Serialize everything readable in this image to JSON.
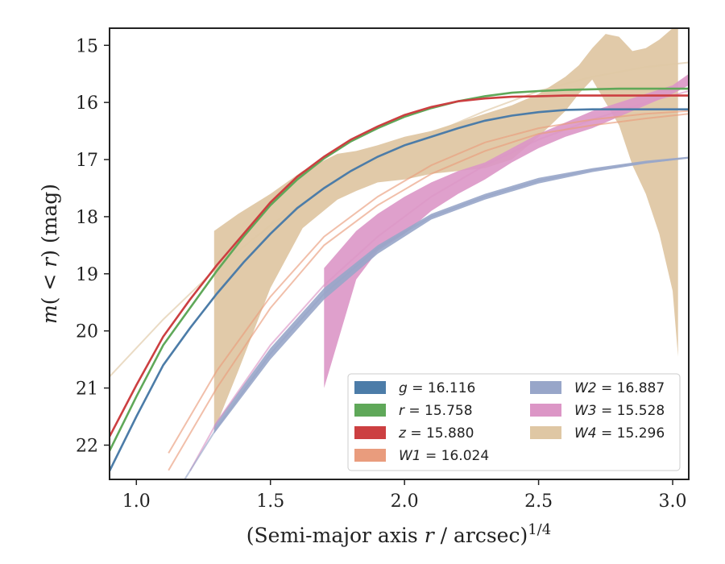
{
  "chart_data": {
    "type": "area",
    "xlabel": "(Semi-major axis r / arcsec)",
    "xlabel_main": "(Semi-major axis ",
    "xlabel_var": "r",
    "xlabel_rest": " / arcsec)",
    "xlabel_exp": "1/4",
    "ylabel": "m(< r) (mag)",
    "ylabel_m": "m",
    "ylabel_lt": "( < ",
    "ylabel_r": "r",
    "ylabel_rest": ") (mag)",
    "xlim": [
      0.9,
      3.06
    ],
    "ylim": [
      22.6,
      14.7
    ],
    "y_inverted": true,
    "x_ticks": [
      1.0,
      1.5,
      2.0,
      2.5,
      3.0
    ],
    "x_tick_labels": [
      "1.0",
      "1.5",
      "2.0",
      "2.5",
      "3.0"
    ],
    "y_ticks": [
      15,
      16,
      17,
      18,
      19,
      20,
      21,
      22
    ],
    "y_tick_labels": [
      "15",
      "16",
      "17",
      "18",
      "19",
      "20",
      "21",
      "22"
    ],
    "grid": false,
    "legend": {
      "placement": "lower-right",
      "columns": 2,
      "entries": [
        {
          "var": "g",
          "value": "16.116",
          "color": "#4c7ca8"
        },
        {
          "var": "r",
          "value": "15.758",
          "color": "#5fa859"
        },
        {
          "var": "z",
          "value": "15.880",
          "color": "#cc3f41"
        },
        {
          "var": "W1",
          "value": "16.024",
          "color": "#e99c7d"
        },
        {
          "var": "W2",
          "value": "16.887",
          "color": "#98a6c9"
        },
        {
          "var": "W3",
          "value": "15.528",
          "color": "#dc96c6"
        },
        {
          "var": "W4",
          "value": "15.296",
          "color": "#dfc7a4"
        }
      ]
    },
    "series": [
      {
        "name": "W4",
        "color": "#dfc7a4",
        "band_x": [
          1.29,
          1.38,
          1.5,
          1.62,
          1.75,
          1.82,
          1.9,
          2.0,
          2.1,
          2.2,
          2.3,
          2.4,
          2.5,
          2.6,
          2.65,
          2.7,
          2.75,
          2.8,
          2.85,
          2.9,
          2.95,
          3.0,
          3.02
        ],
        "band_upper": [
          18.25,
          17.95,
          17.6,
          17.2,
          16.9,
          16.85,
          16.75,
          16.6,
          16.5,
          16.35,
          16.2,
          16.05,
          15.85,
          15.55,
          15.35,
          15.05,
          14.8,
          14.85,
          15.1,
          15.05,
          14.9,
          14.7,
          14.6
        ],
        "band_lower": [
          21.75,
          20.7,
          19.25,
          18.2,
          17.7,
          17.55,
          17.4,
          17.35,
          17.25,
          17.2,
          17.15,
          17.0,
          16.6,
          16.15,
          15.85,
          15.6,
          16.0,
          16.4,
          17.1,
          17.6,
          18.3,
          19.3,
          20.45
        ],
        "line_x": [
          0.9,
          1.1,
          1.3,
          1.5,
          1.7,
          1.9,
          2.1,
          2.3,
          2.5,
          2.7,
          2.9,
          3.06
        ],
        "line_y": [
          20.8,
          19.8,
          18.9,
          18.15,
          17.5,
          17.0,
          16.55,
          16.15,
          15.8,
          15.55,
          15.38,
          15.3
        ],
        "line_x_start": 0.9
      },
      {
        "name": "W3",
        "color": "#dc96c6",
        "band_x": [
          1.7,
          1.82,
          1.9,
          2.0,
          2.1,
          2.2,
          2.3,
          2.4,
          2.5,
          2.6,
          2.7,
          2.8,
          2.9,
          3.0,
          3.06
        ],
        "band_upper": [
          18.9,
          18.25,
          17.95,
          17.65,
          17.4,
          17.2,
          17.05,
          16.8,
          16.55,
          16.35,
          16.15,
          16.0,
          15.85,
          15.7,
          15.5
        ],
        "band_lower": [
          21.0,
          19.1,
          18.6,
          18.3,
          17.9,
          17.6,
          17.35,
          17.05,
          16.8,
          16.6,
          16.45,
          16.25,
          16.05,
          15.85,
          15.7
        ],
        "line_x": [
          0.9,
          1.1,
          1.3,
          1.5,
          1.7,
          1.9,
          2.1,
          2.3,
          2.5,
          2.7,
          2.9,
          3.06
        ],
        "line_y": [
          25.5,
          23.3,
          21.6,
          20.25,
          19.2,
          18.35,
          17.65,
          17.1,
          16.65,
          16.3,
          16.0,
          15.8
        ],
        "line_x_start": 1.2
      },
      {
        "name": "W2",
        "color": "#98a6c9",
        "band_x": [
          1.29,
          1.5,
          1.7,
          1.9,
          2.1,
          2.3,
          2.5,
          2.7,
          2.9,
          3.06
        ],
        "band_upper": [
          21.65,
          20.3,
          19.25,
          18.5,
          17.95,
          17.6,
          17.32,
          17.15,
          17.02,
          16.95
        ],
        "band_lower": [
          21.8,
          20.5,
          19.45,
          18.65,
          18.05,
          17.7,
          17.42,
          17.22,
          17.07,
          16.98
        ],
        "line_x": [
          0.9,
          1.1,
          1.3,
          1.5,
          1.7,
          1.9,
          2.1,
          2.3,
          2.5,
          2.7,
          2.9,
          3.06
        ],
        "line_y": [
          25.2,
          23.2,
          21.7,
          20.4,
          19.35,
          18.55,
          18.0,
          17.65,
          17.37,
          17.18,
          17.05,
          16.97
        ],
        "line_x_start": 1.17
      },
      {
        "name": "W1",
        "color": "#e99c7d",
        "line_x": [
          0.9,
          1.1,
          1.3,
          1.5,
          1.7,
          1.9,
          2.1,
          2.3,
          2.5,
          2.7,
          2.9,
          3.06
        ],
        "line_y": [
          24.7,
          22.6,
          21.0,
          19.6,
          18.5,
          17.8,
          17.25,
          16.85,
          16.55,
          16.4,
          16.28,
          16.2
        ],
        "line_x_start": 1.12,
        "line2_y": [
          24.3,
          22.3,
          20.7,
          19.4,
          18.35,
          17.65,
          17.1,
          16.7,
          16.45,
          16.3,
          16.2,
          16.15
        ]
      },
      {
        "name": "g",
        "color": "#4c7ca8",
        "line_x": [
          0.9,
          1.0,
          1.1,
          1.2,
          1.3,
          1.4,
          1.5,
          1.6,
          1.7,
          1.8,
          1.9,
          2.0,
          2.1,
          2.2,
          2.3,
          2.4,
          2.5,
          2.6,
          2.7,
          2.8,
          2.9,
          3.0,
          3.06
        ],
        "line_y": [
          22.45,
          21.5,
          20.6,
          19.95,
          19.35,
          18.8,
          18.3,
          17.85,
          17.5,
          17.2,
          16.95,
          16.75,
          16.6,
          16.45,
          16.32,
          16.23,
          16.17,
          16.13,
          16.12,
          16.12,
          16.12,
          16.12,
          16.12
        ],
        "line_x_start": 0.9
      },
      {
        "name": "r",
        "color": "#5fa859",
        "line_x": [
          0.9,
          1.0,
          1.1,
          1.2,
          1.3,
          1.4,
          1.5,
          1.6,
          1.7,
          1.8,
          1.9,
          2.0,
          2.1,
          2.2,
          2.3,
          2.4,
          2.5,
          2.6,
          2.7,
          2.8,
          2.9,
          3.0,
          3.06
        ],
        "line_y": [
          22.1,
          21.15,
          20.25,
          19.6,
          18.95,
          18.35,
          17.8,
          17.35,
          16.98,
          16.68,
          16.45,
          16.25,
          16.1,
          15.98,
          15.89,
          15.83,
          15.8,
          15.78,
          15.77,
          15.76,
          15.76,
          15.76,
          15.76
        ],
        "line_x_start": 0.9
      },
      {
        "name": "z",
        "color": "#cc3f41",
        "line_x": [
          0.9,
          1.0,
          1.1,
          1.2,
          1.3,
          1.4,
          1.5,
          1.6,
          1.7,
          1.8,
          1.9,
          2.0,
          2.1,
          2.2,
          2.3,
          2.4,
          2.5,
          2.6,
          2.7,
          2.8,
          2.9,
          3.0,
          3.06
        ],
        "line_y": [
          21.85,
          20.95,
          20.1,
          19.45,
          18.85,
          18.3,
          17.75,
          17.3,
          16.95,
          16.65,
          16.42,
          16.22,
          16.08,
          15.98,
          15.93,
          15.9,
          15.89,
          15.88,
          15.88,
          15.88,
          15.88,
          15.88,
          15.88
        ],
        "line_x_start": 0.9
      }
    ]
  }
}
